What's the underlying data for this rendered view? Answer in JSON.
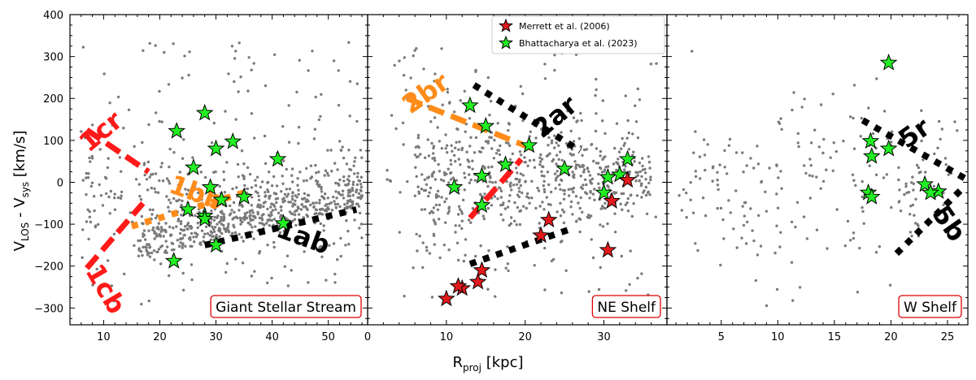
{
  "chart_data": {
    "type": "scatter",
    "shared_ylabel": "V_LOS - V_sys [km/s]",
    "shared_ylabel_parts": {
      "v1": "V",
      "sub1": "LOS",
      "mid": " - V",
      "sub2": "sys",
      "unit": " [km/s]"
    },
    "shared_xlabel": "R_proj [kpc]",
    "shared_xlabel_parts": {
      "main": "R",
      "sub": "proj",
      "unit": " [kpc]"
    },
    "ylim": [
      -340,
      400
    ],
    "yticks": [
      -300,
      -200,
      -100,
      0,
      100,
      200,
      300,
      400
    ],
    "ytick_labels": [
      "−300",
      "−200",
      "−100",
      "0",
      "100",
      "200",
      "300",
      "400"
    ],
    "colors": {
      "points": "#7a7a7a",
      "merrett": "#e31a1c",
      "bhatt": "#22ee22",
      "red_line": "#ff1a1a",
      "orange_line": "#ff8c1a",
      "black_line": "#000000",
      "label_box_border": "#e00000"
    },
    "legend": [
      {
        "name": "Merrett et al. (2006)",
        "color": "#e31a1c"
      },
      {
        "name": "Bhattacharya et al. (2023)",
        "color": "#22ee22"
      }
    ],
    "panels": [
      {
        "name": "Giant Stellar Stream",
        "xlim": [
          4,
          57
        ],
        "xticks": [
          10,
          20,
          30,
          40,
          50
        ],
        "xtick_labels": [
          "10",
          "20",
          "30",
          "40",
          "50"
        ],
        "tracks": [
          {
            "label": "1cr",
            "color": "#ff1a1a",
            "style": "dash",
            "points": [
              [
                7,
                125
              ],
              [
                18,
                25
              ]
            ],
            "label_at": [
              10.5,
              105
            ],
            "rotation": 40
          },
          {
            "label": "1cb",
            "color": "#ff1a1a",
            "style": "dash",
            "points": [
              [
                7,
                -205
              ],
              [
                17,
                -50
              ]
            ],
            "label_at": [
              9,
              -265
            ],
            "rotation": -60
          },
          {
            "label": "1bb",
            "color": "#ff8c1a",
            "style": "dot",
            "points": [
              [
                15,
                -105
              ],
              [
                35,
                -25
              ]
            ],
            "label_at": [
              26,
              -45
            ],
            "rotation": -20
          },
          {
            "label": "1ab",
            "color": "#000000",
            "style": "dot",
            "points": [
              [
                28,
                -150
              ],
              [
                55,
                -65
              ]
            ],
            "label_at": [
              45,
              -150
            ],
            "rotation": -20
          }
        ],
        "merrett": [],
        "bhattacharya": [
          [
            28,
            165
          ],
          [
            23,
            122
          ],
          [
            33,
            97
          ],
          [
            30,
            80
          ],
          [
            41,
            55
          ],
          [
            26,
            35
          ],
          [
            29,
            -12
          ],
          [
            35,
            -35
          ],
          [
            31,
            -42
          ],
          [
            25,
            -65
          ],
          [
            28,
            -80
          ],
          [
            28,
            -88
          ],
          [
            42,
            -98
          ],
          [
            30,
            -150
          ],
          [
            22.5,
            -188
          ]
        ],
        "scatter_seed": 11,
        "scatter_n": 900
      },
      {
        "name": "NE Shelf",
        "xlim": [
          0,
          38
        ],
        "xticks": [
          0,
          10,
          20,
          30
        ],
        "xtick_labels": [
          "0",
          "10",
          "20",
          "30"
        ],
        "tracks": [
          {
            "label": "2br",
            "color": "#ff8c1a",
            "style": "dash",
            "points": [
              [
                5,
                200
              ],
              [
                21,
                80
              ]
            ],
            "label_at": [
              8,
              195
            ],
            "rotation": 35
          },
          {
            "label": "",
            "color": "#ff1a1a",
            "style": "dash",
            "points": [
              [
                13,
                -85
              ],
              [
                19.5,
                55
              ]
            ],
            "label_at": [
              0,
              0
            ],
            "rotation": 0
          },
          {
            "label": "2ar",
            "color": "#000000",
            "style": "dot",
            "points": [
              [
                13.5,
                232
              ],
              [
                27,
                75
              ]
            ],
            "label_at": [
              24.5,
              140
            ],
            "rotation": 40
          },
          {
            "label": "",
            "color": "#000000",
            "style": "dot",
            "points": [
              [
                13,
                -195
              ],
              [
                26,
                -110
              ]
            ],
            "label_at": [
              0,
              0
            ],
            "rotation": 0
          }
        ],
        "merrett": [
          [
            23,
            -90
          ],
          [
            22,
            -127
          ],
          [
            31,
            -45
          ],
          [
            33,
            5
          ],
          [
            30.5,
            -162
          ],
          [
            14.5,
            -210
          ],
          [
            14,
            -238
          ],
          [
            12,
            -253
          ],
          [
            11.5,
            -248
          ],
          [
            10,
            -278
          ]
        ],
        "bhattacharya": [
          [
            13,
            183
          ],
          [
            15,
            134
          ],
          [
            20.5,
            88
          ],
          [
            17.5,
            42
          ],
          [
            25,
            32
          ],
          [
            14.5,
            15
          ],
          [
            11,
            -12
          ],
          [
            14.5,
            -55
          ],
          [
            33,
            55
          ],
          [
            30.5,
            12
          ],
          [
            32,
            18
          ],
          [
            30,
            -25
          ]
        ],
        "scatter_seed": 23,
        "scatter_n": 700
      },
      {
        "name": "W Shelf",
        "xlim": [
          0.2,
          26.8
        ],
        "xticks": [
          5,
          10,
          15,
          20,
          25
        ],
        "xtick_labels": [
          "5",
          "10",
          "15",
          "20",
          "25"
        ],
        "tracks": [
          {
            "label": "5r",
            "color": "#000000",
            "style": "dot",
            "points": [
              [
                17.5,
                148
              ],
              [
                26.5,
                10
              ]
            ],
            "label_at": [
              22.5,
              100
            ],
            "rotation": 35
          },
          {
            "label": "5b",
            "color": "#000000",
            "style": "dot",
            "points": [
              [
                20.5,
                -170
              ],
              [
                26.5,
                -10
              ]
            ],
            "label_at": [
              24.5,
              -110
            ],
            "rotation": -55
          }
        ],
        "merrett": [],
        "bhattacharya": [
          [
            19.8,
            285
          ],
          [
            18.2,
            98
          ],
          [
            19.8,
            80
          ],
          [
            18.3,
            62
          ],
          [
            23,
            -5
          ],
          [
            24.2,
            -22
          ],
          [
            23.5,
            -25
          ],
          [
            18,
            -25
          ],
          [
            18.3,
            -35
          ]
        ],
        "scatter_seed": 37,
        "scatter_n": 230
      }
    ]
  }
}
